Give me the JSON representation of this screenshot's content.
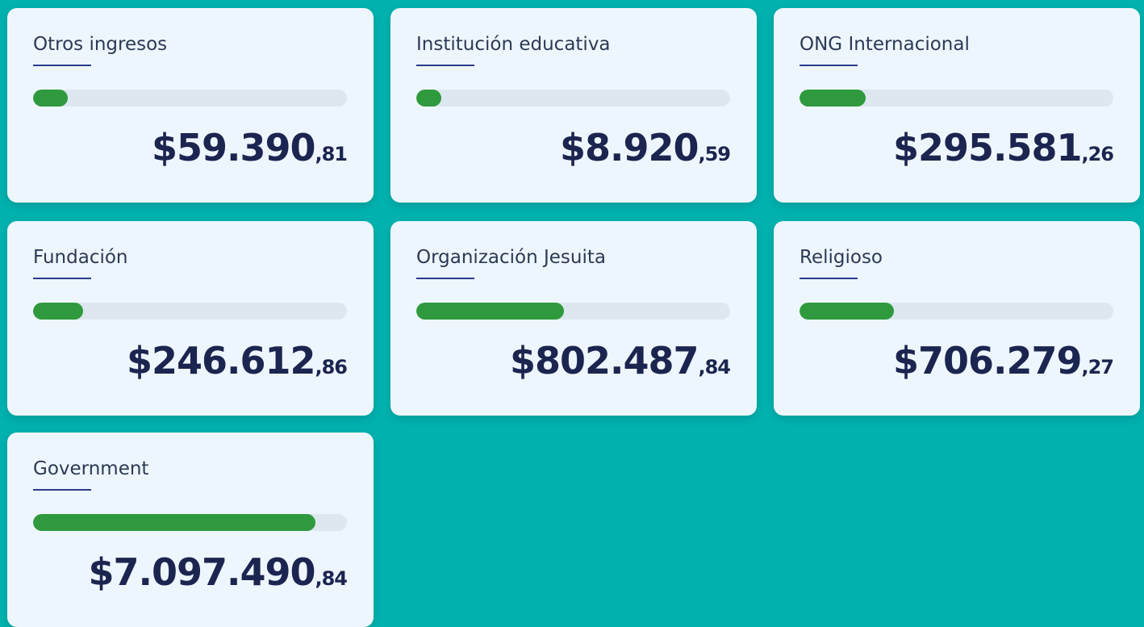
{
  "cards": [
    {
      "label": "Otros ingresos",
      "amount": "$59.390",
      "cents": ",81",
      "bar_percent": 11
    },
    {
      "label": "Institución educativa",
      "amount": "$8.920",
      "cents": ",59",
      "bar_percent": 8
    },
    {
      "label": "ONG Internacional",
      "amount": "$295.581",
      "cents": ",26",
      "bar_percent": 21
    },
    {
      "label": "Fundación",
      "amount": "$246.612",
      "cents": ",86",
      "bar_percent": 16
    },
    {
      "label": "Organización Jesuita",
      "amount": "$802.487",
      "cents": ",84",
      "bar_percent": 47
    },
    {
      "label": "Religioso",
      "amount": "$706.279",
      "cents": ",27",
      "bar_percent": 30
    },
    {
      "label": "Government",
      "amount": "$7.097.490",
      "cents": ",84",
      "bar_percent": 90
    }
  ]
}
